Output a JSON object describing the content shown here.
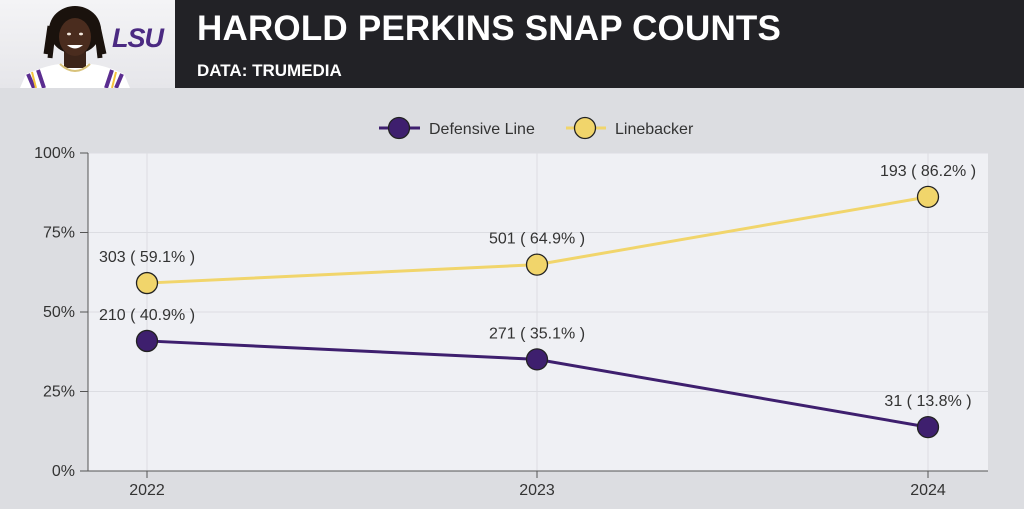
{
  "header": {
    "title": "HAROLD PERKINS SNAP COUNTS",
    "subtitle": "DATA: TRUMEDIA",
    "logo_text": "LSU"
  },
  "colors": {
    "header_bg": "#222226",
    "plot_bg": "#eff0f4",
    "defensive_line": "#3e1f6e",
    "linebacker": "#f1d56b",
    "lsu_purple": "#4b2a82",
    "lsu_gold": "#f5c53c"
  },
  "icons": {
    "player": "player-headshot",
    "logo": "lsu-logo"
  },
  "chart_data": {
    "type": "line",
    "title": "HAROLD PERKINS SNAP COUNTS",
    "subtitle": "DATA: TRUMEDIA",
    "categories": [
      "2022",
      "2023",
      "2024"
    ],
    "y_ticks": [
      "0%",
      "25%",
      "50%",
      "75%",
      "100%"
    ],
    "ylim": [
      0,
      100
    ],
    "grid": true,
    "legend_position": "top-center",
    "series": [
      {
        "name": "Defensive Line",
        "values": [
          40.9,
          35.1,
          13.8
        ],
        "snaps": [
          210,
          271,
          31
        ],
        "labels": [
          "210  ( 40.9% )",
          "271  ( 35.1% )",
          "31  ( 13.8% )"
        ],
        "color": "#3e1f6e"
      },
      {
        "name": "Linebacker",
        "values": [
          59.1,
          64.9,
          86.2
        ],
        "snaps": [
          303,
          501,
          193
        ],
        "labels": [
          "303  ( 59.1% )",
          "501  ( 64.9% )",
          "193  ( 86.2% )"
        ],
        "color": "#f1d56b"
      }
    ]
  }
}
